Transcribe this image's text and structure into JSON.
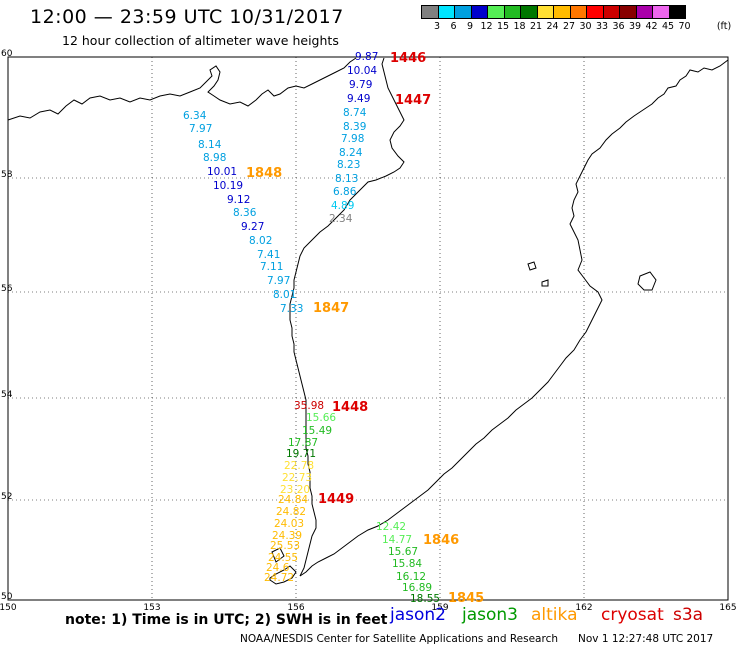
{
  "header": {
    "title": "12:00 — 23:59 UTC 10/31/2017",
    "subtitle": "12 hour collection of altimeter wave heights"
  },
  "legend": {
    "unit": "(ft)",
    "bins": [
      {
        "label": "3",
        "color": "#808080"
      },
      {
        "label": "6",
        "color": "#00e5ff"
      },
      {
        "label": "9",
        "color": "#00a0e0"
      },
      {
        "label": "12",
        "color": "#0000cc"
      },
      {
        "label": "15",
        "color": "#55ee55"
      },
      {
        "label": "18",
        "color": "#22bb22"
      },
      {
        "label": "21",
        "color": "#007700"
      },
      {
        "label": "24",
        "color": "#ffe033"
      },
      {
        "label": "27",
        "color": "#ffbb00"
      },
      {
        "label": "30",
        "color": "#ff7700"
      },
      {
        "label": "33",
        "color": "#ff0000"
      },
      {
        "label": "36",
        "color": "#cc0000"
      },
      {
        "label": "39",
        "color": "#880000"
      },
      {
        "label": "42",
        "color": "#aa00aa"
      },
      {
        "label": "45",
        "color": "#ee66ee"
      },
      {
        "label": "70",
        "color": "#000000"
      }
    ]
  },
  "axes": {
    "x_ticks": [
      "150",
      "153",
      "156",
      "159",
      "162",
      "165"
    ],
    "y_ticks": [
      "60",
      "58",
      "56",
      "54",
      "52",
      "50"
    ]
  },
  "passes": [
    {
      "label": "1446",
      "color": "#dd0000"
    },
    {
      "label": "1447",
      "color": "#dd0000"
    },
    {
      "label": "1848",
      "color": "#ff9900"
    },
    {
      "label": "1847",
      "color": "#ff9900"
    },
    {
      "label": "1448",
      "color": "#dd0000"
    },
    {
      "label": "1449",
      "color": "#dd0000"
    },
    {
      "label": "1846",
      "color": "#ff9900"
    },
    {
      "label": "1845",
      "color": "#ff9900"
    }
  ],
  "observations": [
    {
      "group": "A",
      "value": "9.87",
      "color": "#0000cc"
    },
    {
      "group": "A",
      "value": "10.04",
      "color": "#0000cc"
    },
    {
      "group": "A",
      "value": "9.79",
      "color": "#0000cc"
    },
    {
      "group": "A",
      "value": "9.49",
      "color": "#0000cc"
    },
    {
      "group": "A",
      "value": "8.74",
      "color": "#00a0e0"
    },
    {
      "group": "A",
      "value": "8.39",
      "color": "#00a0e0"
    },
    {
      "group": "A",
      "value": "7.98",
      "color": "#00a0e0"
    },
    {
      "group": "A",
      "value": "8.24",
      "color": "#00a0e0"
    },
    {
      "group": "A",
      "value": "8.23",
      "color": "#00a0e0"
    },
    {
      "group": "A",
      "value": "8.13",
      "color": "#00a0e0"
    },
    {
      "group": "A",
      "value": "6.86",
      "color": "#00a0e0"
    },
    {
      "group": "A",
      "value": "4.89",
      "color": "#00c8f0"
    },
    {
      "group": "A",
      "value": "2.34",
      "color": "#808080"
    },
    {
      "group": "B",
      "value": "6.34",
      "color": "#00a0e0"
    },
    {
      "group": "B",
      "value": "7.97",
      "color": "#00a0e0"
    },
    {
      "group": "B",
      "value": "8.14",
      "color": "#00a0e0"
    },
    {
      "group": "B",
      "value": "8.98",
      "color": "#00a0e0"
    },
    {
      "group": "B",
      "value": "10.01",
      "color": "#0000cc"
    },
    {
      "group": "B",
      "value": "10.19",
      "color": "#0000cc"
    },
    {
      "group": "B",
      "value": "9.12",
      "color": "#0000cc"
    },
    {
      "group": "B",
      "value": "8.36",
      "color": "#00a0e0"
    },
    {
      "group": "B",
      "value": "9.27",
      "color": "#0000cc"
    },
    {
      "group": "B",
      "value": "8.02",
      "color": "#00a0e0"
    },
    {
      "group": "B",
      "value": "7.41",
      "color": "#00a0e0"
    },
    {
      "group": "B",
      "value": "7.11",
      "color": "#00a0e0"
    },
    {
      "group": "B",
      "value": "7.97",
      "color": "#00a0e0"
    },
    {
      "group": "B",
      "value": "8.01",
      "color": "#00a0e0"
    },
    {
      "group": "B",
      "value": "7.33",
      "color": "#00a0e0"
    },
    {
      "group": "C",
      "value": "35.98",
      "color": "#cc0000"
    },
    {
      "group": "C",
      "value": "15.66",
      "color": "#55ee55"
    },
    {
      "group": "C",
      "value": "15.49",
      "color": "#22bb22"
    },
    {
      "group": "C",
      "value": "17.87",
      "color": "#22bb22"
    },
    {
      "group": "C",
      "value": "19.71",
      "color": "#007700"
    },
    {
      "group": "C",
      "value": "22.78",
      "color": "#ffe033"
    },
    {
      "group": "C",
      "value": "22.73",
      "color": "#ffe033"
    },
    {
      "group": "C",
      "value": "23.20",
      "color": "#ffe033"
    },
    {
      "group": "C",
      "value": "24.84",
      "color": "#ffbb00"
    },
    {
      "group": "C",
      "value": "24.82",
      "color": "#ffbb00"
    },
    {
      "group": "C",
      "value": "24.03",
      "color": "#ffbb00"
    },
    {
      "group": "C",
      "value": "24.39",
      "color": "#ffbb00"
    },
    {
      "group": "C",
      "value": "25.53",
      "color": "#ffbb00"
    },
    {
      "group": "C",
      "value": "24.55",
      "color": "#ffbb00"
    },
    {
      "group": "C",
      "value": "24.6",
      "color": "#ffbb00"
    },
    {
      "group": "C",
      "value": "24.72",
      "color": "#ffbb00"
    },
    {
      "group": "D",
      "value": "12.42",
      "color": "#55ee55"
    },
    {
      "group": "D",
      "value": "14.77",
      "color": "#55ee55"
    },
    {
      "group": "D",
      "value": "15.67",
      "color": "#22bb22"
    },
    {
      "group": "D",
      "value": "15.84",
      "color": "#22bb22"
    },
    {
      "group": "D",
      "value": "16.12",
      "color": "#22bb22"
    },
    {
      "group": "D",
      "value": "16.89",
      "color": "#22bb22"
    },
    {
      "group": "D",
      "value": "18.55",
      "color": "#007700"
    }
  ],
  "footer": {
    "note": "note: 1) Time is in UTC; 2) SWH is in feet",
    "satellites": [
      {
        "name": "jason2",
        "color": "#0000dd"
      },
      {
        "name": "jason3",
        "color": "#009900"
      },
      {
        "name": "altika",
        "color": "#ff9900"
      },
      {
        "name": "cryosat",
        "color": "#dd0000"
      },
      {
        "name": "s3a",
        "color": "#cc0000"
      }
    ],
    "credit": "NOAA/NESDIS Center for Satellite Applications and Research",
    "timestamp": "Nov  1 12:27:48 UTC 2017"
  }
}
